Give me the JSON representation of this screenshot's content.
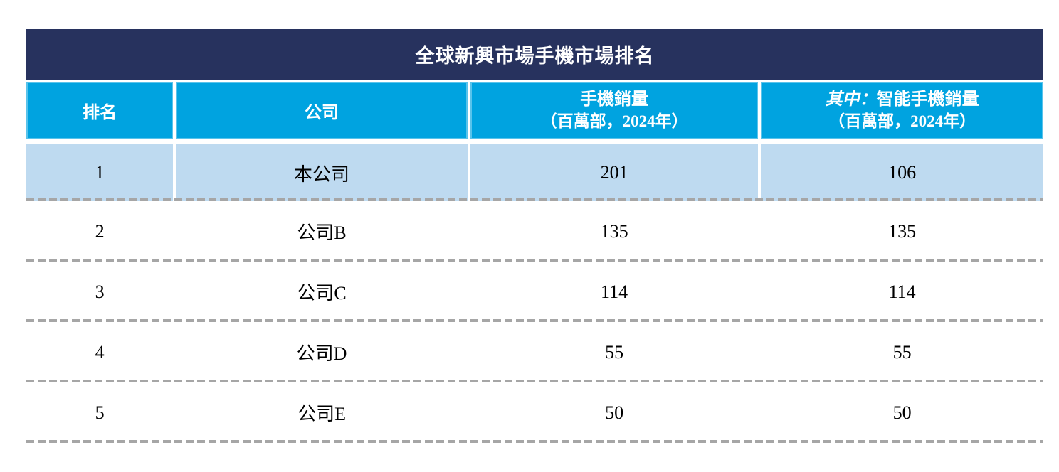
{
  "table": {
    "title": "全球新興市場手機市場排名",
    "header": {
      "rank": "排名",
      "company": "公司",
      "phone_sales_line1": "手機銷量",
      "phone_sales_line2": "（百萬部，2024年）",
      "smartphone_italic": "其中：",
      "smartphone_rest": "智能手機銷量",
      "smartphone_line2": "（百萬部，2024年）"
    },
    "rows": [
      {
        "rank": "1",
        "company": "本公司",
        "phone_sales": "201",
        "smartphone_sales": "106",
        "highlight": true
      },
      {
        "rank": "2",
        "company": "公司B",
        "phone_sales": "135",
        "smartphone_sales": "135",
        "highlight": false
      },
      {
        "rank": "3",
        "company": "公司C",
        "phone_sales": "114",
        "smartphone_sales": "114",
        "highlight": false
      },
      {
        "rank": "4",
        "company": "公司D",
        "phone_sales": "55",
        "smartphone_sales": "55",
        "highlight": false
      },
      {
        "rank": "5",
        "company": "公司E",
        "phone_sales": "50",
        "smartphone_sales": "50",
        "highlight": false
      }
    ]
  },
  "colors": {
    "title_bar": "#27325e",
    "header_cell": "#00a3e0",
    "highlight_cell": "#bedaf0",
    "dash": "#a6a6a6",
    "header_text": "#ffffff",
    "body_text": "#000000"
  },
  "chart_data": {
    "type": "table",
    "title": "全球新興市場手機市場排名",
    "columns": [
      "排名",
      "公司",
      "手機銷量（百萬部，2024年）",
      "其中：智能手機銷量（百萬部，2024年）"
    ],
    "rows": [
      [
        "1",
        "本公司",
        "201",
        "106"
      ],
      [
        "2",
        "公司B",
        "135",
        "135"
      ],
      [
        "3",
        "公司C",
        "114",
        "114"
      ],
      [
        "4",
        "公司D",
        "55",
        "55"
      ],
      [
        "5",
        "公司E",
        "50",
        "50"
      ]
    ],
    "notes": "Row 1 (本公司) is highlighted in light blue; units are millions of units, 2024"
  }
}
